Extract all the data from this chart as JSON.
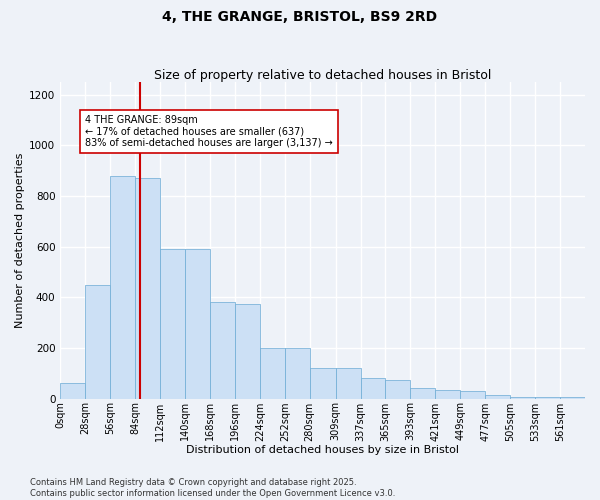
{
  "title": "4, THE GRANGE, BRISTOL, BS9 2RD",
  "subtitle": "Size of property relative to detached houses in Bristol",
  "xlabel": "Distribution of detached houses by size in Bristol",
  "ylabel": "Number of detached properties",
  "footnote": "Contains HM Land Registry data © Crown copyright and database right 2025.\nContains public sector information licensed under the Open Government Licence v3.0.",
  "bin_labels": [
    "0sqm",
    "28sqm",
    "56sqm",
    "84sqm",
    "112sqm",
    "140sqm",
    "168sqm",
    "196sqm",
    "224sqm",
    "252sqm",
    "280sqm",
    "309sqm",
    "337sqm",
    "365sqm",
    "393sqm",
    "421sqm",
    "449sqm",
    "477sqm",
    "505sqm",
    "533sqm",
    "561sqm"
  ],
  "bar_heights": [
    60,
    450,
    880,
    870,
    590,
    590,
    380,
    375,
    200,
    200,
    120,
    120,
    80,
    75,
    40,
    35,
    30,
    15,
    8,
    5,
    5
  ],
  "bar_color": "#cce0f5",
  "bar_edge_color": "#6aaad4",
  "vline_x": 89,
  "vline_color": "#cc0000",
  "annotation_text": "4 THE GRANGE: 89sqm\n← 17% of detached houses are smaller (637)\n83% of semi-detached houses are larger (3,137) →",
  "annotation_box_edge": "#cc0000",
  "annotation_text_color": "#000000",
  "ylim": [
    0,
    1250
  ],
  "background_color": "#eef2f8",
  "plot_background": "#eef2f8",
  "grid_color": "#ffffff",
  "title_fontsize": 10,
  "subtitle_fontsize": 9,
  "axis_label_fontsize": 8,
  "tick_fontsize": 7,
  "bin_edges": [
    0,
    28,
    56,
    84,
    112,
    140,
    168,
    196,
    224,
    252,
    280,
    309,
    337,
    365,
    393,
    421,
    449,
    477,
    505,
    533,
    561,
    589
  ]
}
